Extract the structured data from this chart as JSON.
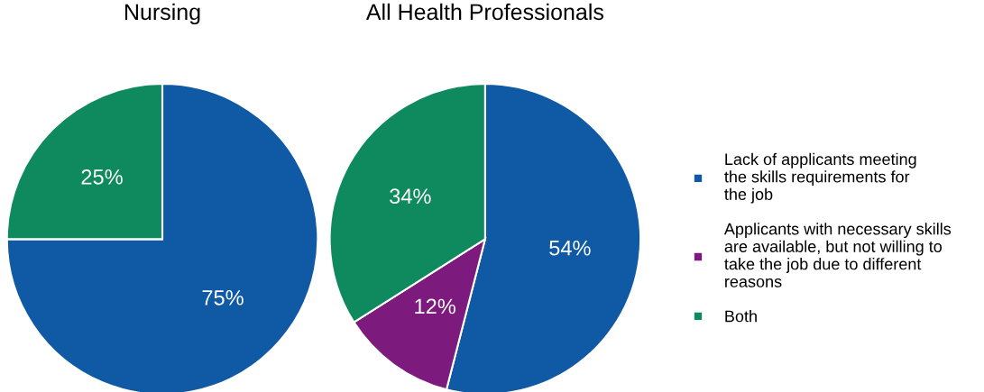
{
  "chart_data": [
    {
      "type": "pie",
      "title": "Nursing",
      "categories": [
        null,
        null
      ],
      "values": [
        75,
        25
      ],
      "colors": [
        "#1059a5",
        "#0f8a5f"
      ],
      "value_labels": [
        "75%",
        "25%"
      ]
    },
    {
      "type": "pie",
      "title": "All Health Professionals",
      "categories": [
        "Lack of applicants meeting\nthe skills requirements for\nthe job",
        "Applicants with necessary skills\nare available, but not willing to\ntake the job due to different\nreasons",
        "Both"
      ],
      "values": [
        54,
        12,
        34
      ],
      "colors": [
        "#1059a5",
        "#7d1a7d",
        "#0f8a5f"
      ],
      "value_labels": [
        "54%",
        "12%",
        "34%"
      ],
      "legend": "right"
    }
  ]
}
